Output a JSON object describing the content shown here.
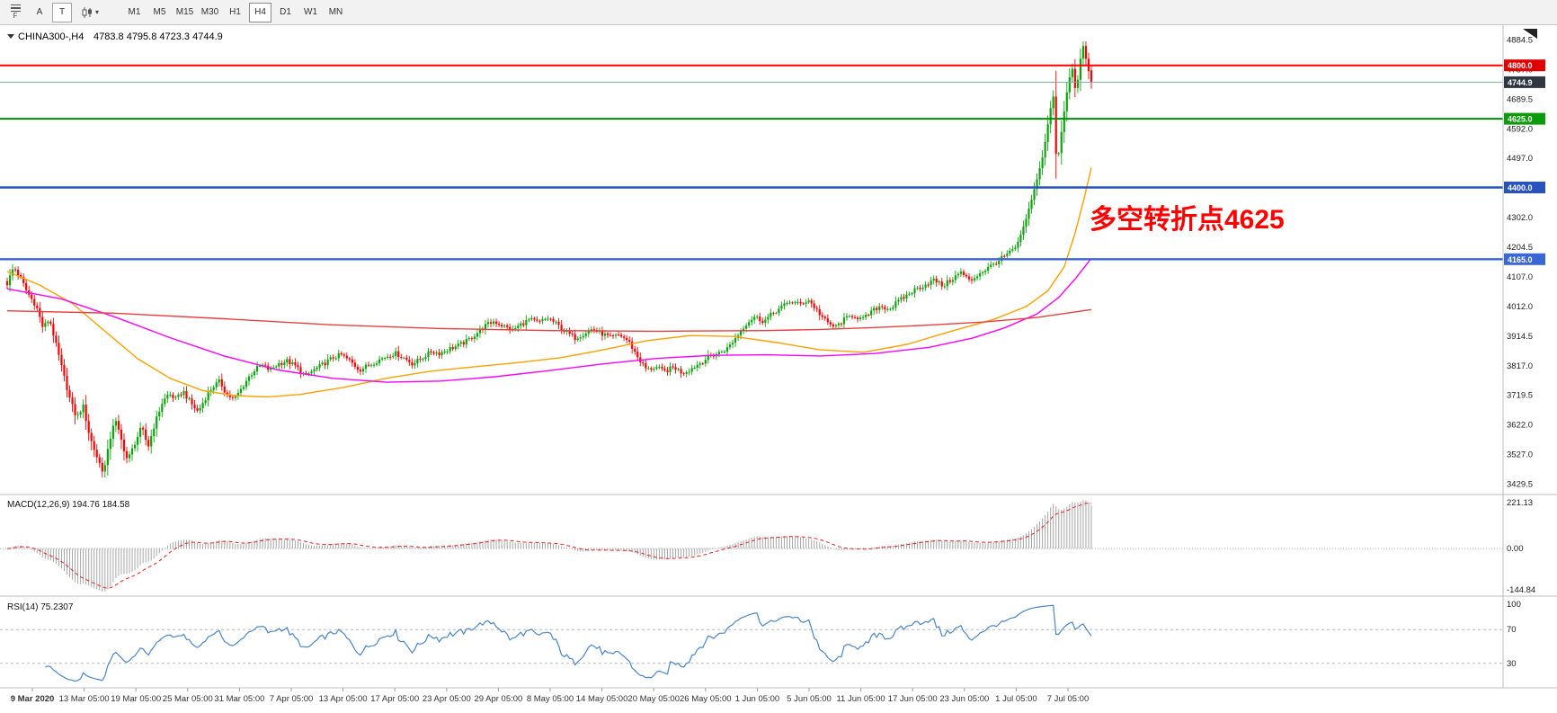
{
  "toolbar": {
    "menu_label": "F",
    "tool_buttons": [
      "A",
      "T"
    ],
    "chart_type_caret": "▾",
    "timeframes": [
      "M1",
      "M5",
      "M15",
      "M30",
      "H1",
      "H4",
      "D1",
      "W1",
      "MN"
    ],
    "active_timeframe": "H4"
  },
  "chart": {
    "type": "candlestick",
    "symbol_period": "CHINA300-,H4",
    "ohlc_line": "4783.8 4795.8 4723.3 4744.9",
    "annotation": {
      "text": "多空转折点4625",
      "color": "#FF0000"
    },
    "price_axis_ticks": [
      "4884.5",
      "4787.0",
      "4689.5",
      "4592.0",
      "4497.0",
      "4399.5",
      "4302.0",
      "4204.5",
      "4107.0",
      "4012.0",
      "3914.5",
      "3817.0",
      "3719.5",
      "3622.0",
      "3527.0",
      "3429.5"
    ],
    "hlines": [
      {
        "label": "4800.0",
        "value": 4800.0,
        "line_color": "#FF0000",
        "badge_color": "#E00000",
        "width": 2
      },
      {
        "label": "4744.9",
        "value": 4744.9,
        "line_color": "#7FA8A2",
        "badge_color": "#2F3842",
        "width": 1
      },
      {
        "label": "4625.0",
        "value": 4625.0,
        "line_color": "#009000",
        "badge_color": "#0B9B0B",
        "width": 2
      },
      {
        "label": "4400.0",
        "value": 4400.0,
        "line_color": "#2A52BE",
        "badge_color": "#2A52BE",
        "width": 2.4
      },
      {
        "label": "4165.0",
        "value": 4165.0,
        "line_color": "#3B66D6",
        "badge_color": "#3B66D6",
        "width": 2.4
      }
    ],
    "time_axis_labels": [
      "9 Mar 2020",
      "13 Mar 05:00",
      "19 Mar 05:00",
      "25 Mar 05:00",
      "31 Mar 05:00",
      "7 Apr 05:00",
      "13 Apr 05:00",
      "17 Apr 05:00",
      "23 Apr 05:00",
      "29 Apr 05:00",
      "8 May 05:00",
      "14 May 05:00",
      "20 May 05:00",
      "26 May 05:00",
      "1 Jun 05:00",
      "5 Jun 05:00",
      "11 Jun 05:00",
      "17 Jun 05:00",
      "23 Jun 05:00",
      "1 Jul 05:00",
      "7 Jul 05:00"
    ],
    "candles": {
      "count": 400,
      "up_color": "#0CA50C",
      "down_color": "#FF0000",
      "last": {
        "o": 4783.8,
        "h": 4795.8,
        "l": 4723.3,
        "c": 4744.9
      },
      "anchors": [
        [
          0,
          4085
        ],
        [
          0.006,
          4140
        ],
        [
          0.012,
          4105
        ],
        [
          0.018,
          4060
        ],
        [
          0.027,
          4010
        ],
        [
          0.033,
          3940
        ],
        [
          0.039,
          3970
        ],
        [
          0.045,
          3885
        ],
        [
          0.051,
          3800
        ],
        [
          0.058,
          3705
        ],
        [
          0.064,
          3645
        ],
        [
          0.07,
          3685
        ],
        [
          0.076,
          3585
        ],
        [
          0.083,
          3515
        ],
        [
          0.089,
          3465
        ],
        [
          0.094,
          3560
        ],
        [
          0.099,
          3645
        ],
        [
          0.105,
          3575
        ],
        [
          0.111,
          3505
        ],
        [
          0.118,
          3565
        ],
        [
          0.124,
          3615
        ],
        [
          0.13,
          3550
        ],
        [
          0.136,
          3625
        ],
        [
          0.143,
          3695
        ],
        [
          0.149,
          3725
        ],
        [
          0.156,
          3705
        ],
        [
          0.162,
          3735
        ],
        [
          0.169,
          3695
        ],
        [
          0.176,
          3665
        ],
        [
          0.182,
          3705
        ],
        [
          0.189,
          3745
        ],
        [
          0.196,
          3765
        ],
        [
          0.202,
          3725
        ],
        [
          0.209,
          3705
        ],
        [
          0.215,
          3735
        ],
        [
          0.222,
          3775
        ],
        [
          0.229,
          3805
        ],
        [
          0.235,
          3818
        ],
        [
          0.242,
          3802
        ],
        [
          0.25,
          3822
        ],
        [
          0.258,
          3832
        ],
        [
          0.267,
          3812
        ],
        [
          0.275,
          3782
        ],
        [
          0.283,
          3802
        ],
        [
          0.292,
          3822
        ],
        [
          0.3,
          3842
        ],
        [
          0.308,
          3852
        ],
        [
          0.316,
          3832
        ],
        [
          0.325,
          3802
        ],
        [
          0.333,
          3817
        ],
        [
          0.341,
          3832
        ],
        [
          0.35,
          3847
        ],
        [
          0.358,
          3857
        ],
        [
          0.366,
          3842
        ],
        [
          0.374,
          3822
        ],
        [
          0.383,
          3842
        ],
        [
          0.391,
          3862
        ],
        [
          0.399,
          3857
        ],
        [
          0.408,
          3872
        ],
        [
          0.416,
          3882
        ],
        [
          0.424,
          3897
        ],
        [
          0.433,
          3922
        ],
        [
          0.441,
          3947
        ],
        [
          0.449,
          3962
        ],
        [
          0.457,
          3947
        ],
        [
          0.466,
          3932
        ],
        [
          0.474,
          3952
        ],
        [
          0.482,
          3967
        ],
        [
          0.49,
          3957
        ],
        [
          0.499,
          3972
        ],
        [
          0.507,
          3952
        ],
        [
          0.515,
          3927
        ],
        [
          0.524,
          3907
        ],
        [
          0.532,
          3922
        ],
        [
          0.54,
          3937
        ],
        [
          0.548,
          3922
        ],
        [
          0.557,
          3907
        ],
        [
          0.565,
          3917
        ],
        [
          0.573,
          3897
        ],
        [
          0.582,
          3842
        ],
        [
          0.59,
          3802
        ],
        [
          0.598,
          3812
        ],
        [
          0.606,
          3797
        ],
        [
          0.615,
          3812
        ],
        [
          0.623,
          3792
        ],
        [
          0.631,
          3807
        ],
        [
          0.64,
          3827
        ],
        [
          0.648,
          3847
        ],
        [
          0.656,
          3857
        ],
        [
          0.664,
          3872
        ],
        [
          0.673,
          3912
        ],
        [
          0.681,
          3952
        ],
        [
          0.689,
          3977
        ],
        [
          0.698,
          3962
        ],
        [
          0.706,
          3987
        ],
        [
          0.714,
          4007
        ],
        [
          0.722,
          4027
        ],
        [
          0.731,
          4017
        ],
        [
          0.739,
          4032
        ],
        [
          0.747,
          3997
        ],
        [
          0.756,
          3957
        ],
        [
          0.764,
          3942
        ],
        [
          0.772,
          3967
        ],
        [
          0.78,
          3982
        ],
        [
          0.789,
          3967
        ],
        [
          0.797,
          3992
        ],
        [
          0.805,
          4012
        ],
        [
          0.814,
          4002
        ],
        [
          0.822,
          4027
        ],
        [
          0.83,
          4047
        ],
        [
          0.838,
          4067
        ],
        [
          0.847,
          4082
        ],
        [
          0.855,
          4097
        ],
        [
          0.863,
          4077
        ],
        [
          0.872,
          4102
        ],
        [
          0.88,
          4122
        ],
        [
          0.888,
          4092
        ],
        [
          0.896,
          4117
        ],
        [
          0.905,
          4137
        ],
        [
          0.913,
          4157
        ],
        [
          0.921,
          4177
        ],
        [
          0.93,
          4202
        ],
        [
          0.936,
          4252
        ],
        [
          0.941,
          4312
        ],
        [
          0.946,
          4372
        ],
        [
          0.95,
          4432
        ],
        [
          0.954,
          4482
        ],
        [
          0.958,
          4562
        ],
        [
          0.962,
          4652
        ],
        [
          0.965,
          4700
        ],
        [
          0.968,
          4462
        ],
        [
          0.971,
          4545
        ],
        [
          0.974,
          4625
        ],
        [
          0.977,
          4705
        ],
        [
          0.98,
          4765
        ],
        [
          0.982,
          4800
        ],
        [
          0.984,
          4745
        ],
        [
          0.986,
          4705
        ],
        [
          0.988,
          4765
        ],
        [
          0.99,
          4825
        ],
        [
          0.992,
          4868
        ],
        [
          0.994,
          4840
        ],
        [
          0.996,
          4800
        ],
        [
          0.998,
          4772
        ],
        [
          1,
          4744.9
        ]
      ]
    },
    "ma_lines": [
      {
        "name": "ma-orange",
        "color": "#FFA000",
        "points": [
          [
            0,
            4125
          ],
          [
            0.03,
            4080
          ],
          [
            0.06,
            4020
          ],
          [
            0.09,
            3930
          ],
          [
            0.12,
            3840
          ],
          [
            0.15,
            3775
          ],
          [
            0.18,
            3735
          ],
          [
            0.21,
            3718
          ],
          [
            0.24,
            3714
          ],
          [
            0.27,
            3722
          ],
          [
            0.31,
            3745
          ],
          [
            0.35,
            3775
          ],
          [
            0.39,
            3798
          ],
          [
            0.43,
            3812
          ],
          [
            0.47,
            3826
          ],
          [
            0.51,
            3842
          ],
          [
            0.55,
            3868
          ],
          [
            0.59,
            3898
          ],
          [
            0.63,
            3915
          ],
          [
            0.67,
            3912
          ],
          [
            0.71,
            3892
          ],
          [
            0.75,
            3868
          ],
          [
            0.79,
            3860
          ],
          [
            0.83,
            3886
          ],
          [
            0.87,
            3928
          ],
          [
            0.91,
            3968
          ],
          [
            0.94,
            4010
          ],
          [
            0.96,
            4062
          ],
          [
            0.975,
            4140
          ],
          [
            0.985,
            4250
          ],
          [
            0.993,
            4360
          ],
          [
            1,
            4465
          ]
        ]
      },
      {
        "name": "ma-magenta",
        "color": "#FF00FF",
        "points": [
          [
            0,
            4068
          ],
          [
            0.05,
            4035
          ],
          [
            0.1,
            3975
          ],
          [
            0.15,
            3908
          ],
          [
            0.2,
            3848
          ],
          [
            0.25,
            3802
          ],
          [
            0.3,
            3775
          ],
          [
            0.35,
            3762
          ],
          [
            0.4,
            3766
          ],
          [
            0.45,
            3780
          ],
          [
            0.5,
            3800
          ],
          [
            0.55,
            3822
          ],
          [
            0.6,
            3840
          ],
          [
            0.65,
            3850
          ],
          [
            0.7,
            3852
          ],
          [
            0.75,
            3848
          ],
          [
            0.8,
            3856
          ],
          [
            0.85,
            3876
          ],
          [
            0.89,
            3906
          ],
          [
            0.92,
            3940
          ],
          [
            0.95,
            3986
          ],
          [
            0.97,
            4040
          ],
          [
            0.985,
            4100
          ],
          [
            1,
            4168
          ]
        ]
      },
      {
        "name": "ma-red",
        "color": "#E84040",
        "points": [
          [
            0,
            3996
          ],
          [
            0.1,
            3988
          ],
          [
            0.2,
            3970
          ],
          [
            0.3,
            3950
          ],
          [
            0.4,
            3938
          ],
          [
            0.5,
            3931
          ],
          [
            0.6,
            3929
          ],
          [
            0.7,
            3931
          ],
          [
            0.75,
            3935
          ],
          [
            0.8,
            3941
          ],
          [
            0.85,
            3949
          ],
          [
            0.9,
            3959
          ],
          [
            0.95,
            3974
          ],
          [
            1,
            4000
          ]
        ]
      }
    ]
  },
  "macd": {
    "label": "MACD(12,26,9) 194.76 184.58",
    "fast": 12,
    "slow": 26,
    "signal_period": 9,
    "axis_labels": [
      "221.13",
      "0.00",
      "-144.84"
    ],
    "hist_color": "#A6A6A6",
    "signal_color": "#E82020"
  },
  "rsi": {
    "label": "RSI(14) 75.2307",
    "period": 14,
    "levels": [
      70,
      30
    ],
    "axis_labels": [
      "100",
      "70",
      "30"
    ],
    "line_color": "#4A86C8"
  }
}
